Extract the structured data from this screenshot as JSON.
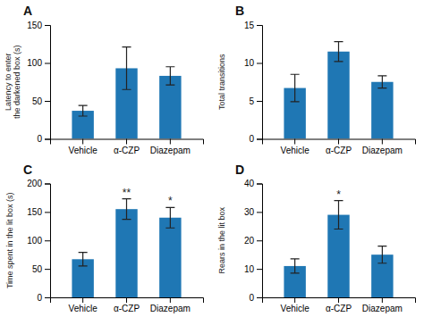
{
  "chart_data": [
    {
      "type": "bar",
      "title": "A",
      "ylabel": "Latency to enter\nthe darkened box (s)",
      "categories": [
        "Vehicle",
        "α-CZP",
        "Diazepam"
      ],
      "values": [
        37,
        93,
        83
      ],
      "errors": [
        7,
        28,
        12
      ],
      "ylim": [
        0,
        150
      ],
      "yticks": [
        0,
        50,
        100,
        150
      ]
    },
    {
      "type": "bar",
      "title": "B",
      "ylabel": "Total transitions",
      "categories": [
        "Vehicle",
        "α-CZP",
        "Diazepam"
      ],
      "values": [
        6.7,
        11.5,
        7.5
      ],
      "errors": [
        1.8,
        1.3,
        0.8
      ],
      "ylim": [
        0,
        15
      ],
      "yticks": [
        0,
        5,
        10,
        15
      ]
    },
    {
      "type": "bar",
      "title": "C",
      "ylabel": "Time spent in the lit box (s)",
      "categories": [
        "Vehicle",
        "α-CZP",
        "Diazepam"
      ],
      "values": [
        67,
        155,
        140
      ],
      "errors": [
        12,
        18,
        18
      ],
      "ylim": [
        0,
        200
      ],
      "yticks": [
        0,
        50,
        100,
        150,
        200
      ],
      "annotations": [
        {
          "category": "α-CZP",
          "text": "**"
        },
        {
          "category": "Diazepam",
          "text": "*"
        }
      ]
    },
    {
      "type": "bar",
      "title": "D",
      "ylabel": "Rears in the lit box",
      "categories": [
        "Vehicle",
        "α-CZP",
        "Diazepam"
      ],
      "values": [
        11,
        29,
        15
      ],
      "errors": [
        2.5,
        5,
        3
      ],
      "ylim": [
        0,
        40
      ],
      "yticks": [
        0,
        10,
        20,
        30,
        40
      ],
      "annotations": [
        {
          "category": "α-CZP",
          "text": "*"
        }
      ]
    }
  ]
}
